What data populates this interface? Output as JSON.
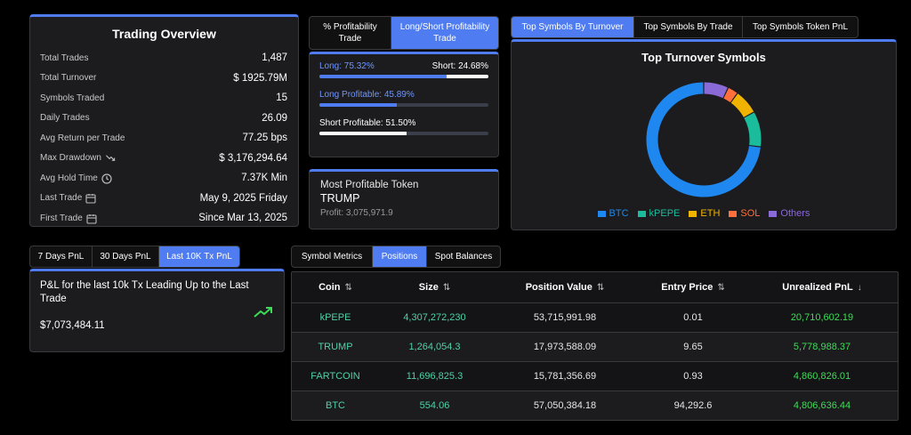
{
  "overview": {
    "title": "Trading Overview",
    "rows": [
      {
        "label": "Total Trades",
        "value": "1,487"
      },
      {
        "label": "Total Turnover",
        "value": "$ 1925.79M"
      },
      {
        "label": "Symbols Traded",
        "value": "15"
      },
      {
        "label": "Daily Trades",
        "value": "26.09"
      },
      {
        "label": "Avg Return per Trade",
        "value": "77.25 bps"
      },
      {
        "label": "Max Drawdown",
        "value": "$ 3,176,294.64",
        "icon": "trend-down-icon"
      },
      {
        "label": "Avg Hold Time",
        "value": "7.37K Min",
        "icon": "clock-icon"
      },
      {
        "label": "Last Trade",
        "value": "May 9, 2025 Friday",
        "icon": "calendar-icon"
      },
      {
        "label": "First Trade",
        "value": "Since Mar 13, 2025",
        "icon": "calendar-icon"
      }
    ]
  },
  "profitability": {
    "tabs": [
      "% Profitability Trade",
      "Long/Short Profitability Trade"
    ],
    "active_tab": 1,
    "long_label": "Long: 75.32%",
    "short_label": "Short: 24.68%",
    "long_ratio": 0.7532,
    "long_profitable_label": "Long Profitable: 45.89%",
    "long_profitable": 0.4589,
    "short_profitable_label": "Short Profitable: 51.50%",
    "short_profitable": 0.515,
    "colors": {
      "long": "#4f7cf0",
      "short": "#ffffff",
      "track": "#3a3d4a"
    }
  },
  "token": {
    "title": "Most Profitable Token",
    "symbol": "TRUMP",
    "profit": "Profit: 3,075,971.9"
  },
  "symbols": {
    "tabs": [
      "Top Symbols By Turnover",
      "Top Symbols By Trade",
      "Top Symbols Token PnL"
    ],
    "active_tab": 0,
    "chart_title": "Top Turnover Symbols"
  },
  "chart_data": {
    "type": "pie",
    "title": "Top Turnover Symbols",
    "categories": [
      "BTC",
      "kPEPE",
      "ETH",
      "SOL",
      "Others"
    ],
    "values": [
      73,
      10,
      7,
      3,
      7
    ],
    "colors": [
      "#1e88f0",
      "#1abc9c",
      "#f0b400",
      "#ff6f3c",
      "#8a6ad6"
    ],
    "legend_position": "bottom"
  },
  "pnl": {
    "tabs": [
      "7 Days PnL",
      "30 Days PnL",
      "Last 10K Tx PnL"
    ],
    "active_tab": 2,
    "description": "P&L for the last 10k Tx Leading Up to the Last Trade",
    "value": "$7,073,484.11",
    "trend_color": "#3ddc57"
  },
  "positions": {
    "tabs": [
      "Symbol Metrics",
      "Positions",
      "Spot Balances"
    ],
    "active_tab": 1,
    "columns": [
      {
        "label": "Coin",
        "sort": "⇅"
      },
      {
        "label": "Size",
        "sort": "⇅"
      },
      {
        "label": "Position Value",
        "sort": "⇅"
      },
      {
        "label": "Entry Price",
        "sort": "⇅"
      },
      {
        "label": "Unrealized PnL",
        "sort": "↓"
      }
    ],
    "rows": [
      [
        "kPEPE",
        "4,307,272,230",
        "53,715,991.98",
        "0.01",
        "20,710,602.19"
      ],
      [
        "TRUMP",
        "1,264,054.3",
        "17,973,588.09",
        "9.65",
        "5,778,988.37"
      ],
      [
        "FARTCOIN",
        "11,696,825.3",
        "15,781,356.69",
        "0.93",
        "4,860,826.01"
      ],
      [
        "BTC",
        "554.06",
        "57,050,384.18",
        "94,292.6",
        "4,806,636.44"
      ]
    ],
    "colors": {
      "coin": "#4fd1a5",
      "size": "#4fd1a5",
      "pnl": "#3ddc57"
    }
  }
}
